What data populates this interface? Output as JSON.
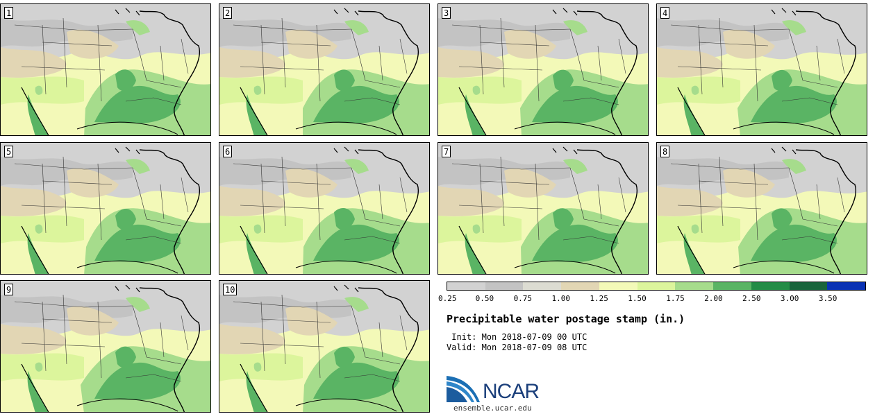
{
  "stamps": [
    "1",
    "2",
    "3",
    "4",
    "5",
    "6",
    "7",
    "8",
    "9",
    "10"
  ],
  "legend": {
    "colors": [
      "#d2d2d2",
      "#c3c3c3",
      "#dcdcd2",
      "#e2d6b4",
      "#f3f9b8",
      "#dcf59c",
      "#a6dc8c",
      "#5ab464",
      "#238c46",
      "#19643c",
      "#0a32b4"
    ],
    "ticks": [
      "0.25",
      "0.50",
      "0.75",
      "1.00",
      "1.25",
      "1.50",
      "1.75",
      "2.00",
      "2.50",
      "3.00",
      "3.50"
    ]
  },
  "title": "Precipitable water postage stamp (in.)",
  "init": " Init: Mon 2018-07-09 00 UTC",
  "valid": "Valid: Mon 2018-07-09 08 UTC",
  "logo": {
    "text": "NCAR",
    "url": "ensemble.ucar.edu",
    "accent": "#1b6fb4"
  }
}
